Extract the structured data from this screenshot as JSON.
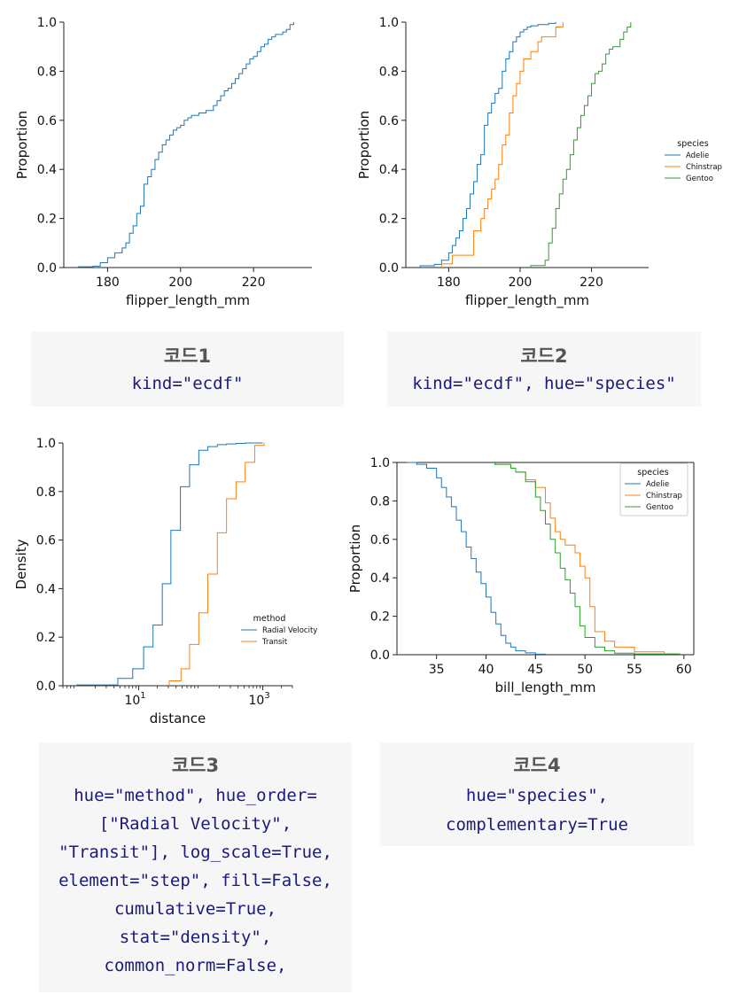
{
  "colors": {
    "blue": "#1f77b4",
    "orange": "#ff7f0e",
    "green": "#2ca02c",
    "code_text": "#1a1a7a",
    "code_title": "#555555",
    "box_bg": "#f6f6f6"
  },
  "chart_data": [
    {
      "type": "line",
      "step": true,
      "xlabel": "flipper_length_mm",
      "ylabel": "Proportion",
      "xlim": [
        168,
        236
      ],
      "ylim": [
        0,
        1
      ],
      "xticks": [
        "180",
        "200",
        "220"
      ],
      "yticks": [
        "0.0",
        "0.2",
        "0.4",
        "0.6",
        "0.8",
        "1.0"
      ],
      "series": [
        {
          "color": "#1f77b4",
          "x": [
            172,
            176,
            178,
            180,
            182,
            184,
            185,
            186,
            187,
            188,
            189,
            190,
            191,
            192,
            193,
            194,
            195,
            196,
            197,
            198,
            199,
            200,
            201,
            202,
            203,
            205,
            207,
            209,
            210,
            211,
            212,
            213,
            214,
            215,
            216,
            217,
            218,
            219,
            220,
            221,
            222,
            223,
            224,
            225,
            226,
            228,
            229,
            230,
            231
          ],
          "y": [
            0.003,
            0.006,
            0.02,
            0.04,
            0.06,
            0.08,
            0.1,
            0.14,
            0.17,
            0.22,
            0.25,
            0.34,
            0.37,
            0.4,
            0.44,
            0.47,
            0.5,
            0.52,
            0.54,
            0.56,
            0.57,
            0.58,
            0.6,
            0.61,
            0.62,
            0.63,
            0.64,
            0.66,
            0.68,
            0.7,
            0.72,
            0.73,
            0.75,
            0.77,
            0.79,
            0.81,
            0.83,
            0.85,
            0.86,
            0.88,
            0.9,
            0.91,
            0.93,
            0.94,
            0.95,
            0.96,
            0.97,
            0.99,
            1.0
          ]
        }
      ]
    },
    {
      "type": "line",
      "step": true,
      "xlabel": "flipper_length_mm",
      "ylabel": "Proportion",
      "xlim": [
        168,
        236
      ],
      "ylim": [
        0,
        1
      ],
      "xticks": [
        "180",
        "200",
        "220"
      ],
      "yticks": [
        "0.0",
        "0.2",
        "0.4",
        "0.6",
        "0.8",
        "1.0"
      ],
      "legend": {
        "title": "species",
        "placement": "outside-right"
      },
      "series": [
        {
          "name": "Adelie",
          "color": "#1f77b4",
          "x": [
            172,
            176,
            178,
            180,
            181,
            182,
            183,
            184,
            185,
            186,
            187,
            188,
            189,
            190,
            191,
            192,
            193,
            194,
            195,
            196,
            197,
            198,
            199,
            200,
            201,
            202,
            203,
            205,
            208,
            210
          ],
          "y": [
            0.007,
            0.013,
            0.03,
            0.06,
            0.09,
            0.12,
            0.15,
            0.2,
            0.24,
            0.3,
            0.35,
            0.42,
            0.46,
            0.58,
            0.63,
            0.67,
            0.71,
            0.73,
            0.8,
            0.85,
            0.88,
            0.92,
            0.94,
            0.96,
            0.97,
            0.98,
            0.985,
            0.99,
            0.995,
            1.0
          ]
        },
        {
          "name": "Chinstrap",
          "color": "#ff7f0e",
          "x": [
            178,
            181,
            187,
            189,
            190,
            191,
            192,
            193,
            194,
            195,
            196,
            197,
            198,
            199,
            200,
            201,
            203,
            205,
            206,
            210,
            212
          ],
          "y": [
            0.015,
            0.05,
            0.15,
            0.2,
            0.24,
            0.28,
            0.32,
            0.36,
            0.42,
            0.5,
            0.54,
            0.63,
            0.7,
            0.75,
            0.8,
            0.85,
            0.88,
            0.92,
            0.94,
            0.98,
            1.0
          ]
        },
        {
          "name": "Gentoo",
          "color": "#2ca02c",
          "x": [
            203,
            207,
            208,
            209,
            210,
            211,
            212,
            213,
            214,
            215,
            216,
            217,
            218,
            219,
            220,
            221,
            222,
            223,
            224,
            225,
            226,
            228,
            229,
            230,
            231
          ],
          "y": [
            0.008,
            0.03,
            0.1,
            0.16,
            0.24,
            0.3,
            0.36,
            0.4,
            0.46,
            0.52,
            0.57,
            0.62,
            0.66,
            0.7,
            0.75,
            0.79,
            0.8,
            0.83,
            0.87,
            0.89,
            0.9,
            0.93,
            0.96,
            0.98,
            1.0
          ]
        }
      ]
    },
    {
      "type": "line",
      "step": true,
      "xscale": "log",
      "xlabel": "distance",
      "ylabel": "Density",
      "xlim": [
        0.6,
        3000
      ],
      "ylim": [
        0,
        1
      ],
      "xticks": [
        "10",
        "10"
      ],
      "xtick_exponents": [
        "1",
        "3"
      ],
      "yticks": [
        "0.0",
        "0.2",
        "0.4",
        "0.6",
        "0.8",
        "1.0"
      ],
      "legend": {
        "title": "method",
        "placement": "lower-right"
      },
      "series": [
        {
          "name": "Radial Velocity",
          "color": "#1f77b4",
          "x": [
            1,
            4.6,
            8,
            12,
            17,
            24,
            33,
            47,
            66,
            93,
            130,
            185,
            260,
            370,
            520,
            1000
          ],
          "y": [
            0.003,
            0.03,
            0.07,
            0.16,
            0.25,
            0.42,
            0.64,
            0.82,
            0.91,
            0.97,
            0.985,
            0.993,
            0.996,
            0.998,
            1.0,
            1.0
          ]
        },
        {
          "name": "Transit",
          "color": "#ff7f0e",
          "x": [
            31,
            48,
            66,
            93,
            130,
            185,
            260,
            370,
            520,
            740,
            1050
          ],
          "y": [
            0.02,
            0.07,
            0.17,
            0.3,
            0.46,
            0.63,
            0.77,
            0.84,
            0.92,
            0.99,
            1.0
          ]
        }
      ]
    },
    {
      "type": "line",
      "step": true,
      "complementary": true,
      "xlabel": "bill_length_mm",
      "ylabel": "Proportion",
      "xlim": [
        31,
        61
      ],
      "ylim": [
        0,
        1
      ],
      "xticks": [
        "35",
        "40",
        "45",
        "50",
        "55",
        "60"
      ],
      "yticks": [
        "0.0",
        "0.2",
        "0.4",
        "0.6",
        "0.8",
        "1.0"
      ],
      "legend": {
        "title": "species",
        "placement": "top-right"
      },
      "series": [
        {
          "name": "Adelie",
          "color": "#1f77b4",
          "x": [
            32,
            33,
            34,
            35,
            35.5,
            36,
            36.5,
            37,
            37.5,
            38,
            38.5,
            39,
            39.5,
            40,
            40.5,
            41,
            41.5,
            42,
            42.5,
            43,
            44,
            45,
            46
          ],
          "y": [
            1.0,
            0.99,
            0.97,
            0.92,
            0.87,
            0.82,
            0.77,
            0.7,
            0.64,
            0.56,
            0.5,
            0.43,
            0.37,
            0.3,
            0.22,
            0.16,
            0.1,
            0.06,
            0.04,
            0.02,
            0.01,
            0.003,
            0.0
          ]
        },
        {
          "name": "Chinstrap",
          "color": "#ff7f0e",
          "x": [
            41,
            42.5,
            43,
            44,
            45,
            46,
            46.5,
            47,
            47.5,
            48,
            49,
            49.5,
            50,
            50.5,
            51,
            52,
            53,
            55,
            58
          ],
          "y": [
            0.99,
            0.97,
            0.95,
            0.91,
            0.87,
            0.79,
            0.71,
            0.64,
            0.6,
            0.57,
            0.53,
            0.46,
            0.4,
            0.25,
            0.12,
            0.07,
            0.04,
            0.015,
            0.0
          ]
        },
        {
          "name": "Gentoo",
          "color": "#2ca02c",
          "x": [
            40.9,
            42.5,
            43,
            44,
            45,
            45.5,
            46,
            46.5,
            47,
            47.5,
            48,
            48.5,
            49,
            49.5,
            50,
            51,
            52,
            53,
            55,
            59.6
          ],
          "y": [
            0.99,
            0.97,
            0.95,
            0.9,
            0.82,
            0.75,
            0.68,
            0.6,
            0.53,
            0.45,
            0.39,
            0.32,
            0.25,
            0.15,
            0.09,
            0.04,
            0.02,
            0.008,
            0.004,
            0.0
          ]
        }
      ]
    }
  ],
  "code_boxes": [
    {
      "title": "코드1",
      "lines": [
        "kind=\"ecdf\""
      ]
    },
    {
      "title": "코드2",
      "lines": [
        "kind=\"ecdf\", hue=\"species\""
      ]
    },
    {
      "title": "코드3",
      "lines": [
        "hue=\"method\", hue_order=",
        "[\"Radial Velocity\",",
        "\"Transit\"], log_scale=True,",
        "element=\"step\", fill=False,",
        "cumulative=True,",
        "stat=\"density\",",
        "common_norm=False,"
      ]
    },
    {
      "title": "코드4",
      "lines": [
        "hue=\"species\",",
        "complementary=True"
      ]
    }
  ]
}
